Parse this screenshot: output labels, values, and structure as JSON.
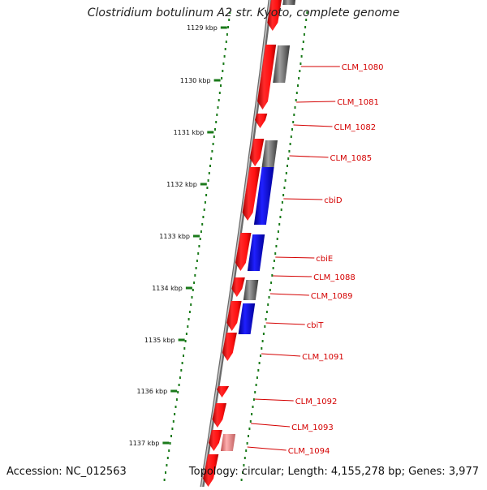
{
  "title": "Clostridium botulinum A2 str. Kyoto, complete genome",
  "footer": {
    "accession": "Accession: NC_012563",
    "summary": "Topology: circular; Length: 4,155,278 bp; Genes: 3,977"
  },
  "scale_labels": [
    "1129 kbp",
    "1130 kbp",
    "1131 kbp",
    "1132 kbp",
    "1133 kbp",
    "1134 kbp",
    "1135 kbp",
    "1136 kbp",
    "1137 kbp"
  ],
  "gene_labels": [
    "CLM_1080",
    "CLM_1081",
    "CLM_1082",
    "CLM_1085",
    "cbiD",
    "cbiE",
    "CLM_1088",
    "CLM_1089",
    "cbiT",
    "CLM_1091",
    "CLM_1092",
    "CLM_1093",
    "CLM_1094"
  ],
  "colors": {
    "backbone": "#7a7a7a",
    "tick": "#1a7a1a",
    "forward_gene": "#e00000",
    "reverse_gene": "#6a6a6a",
    "blue_gene": "#0a0af0",
    "label": "#d40000"
  }
}
